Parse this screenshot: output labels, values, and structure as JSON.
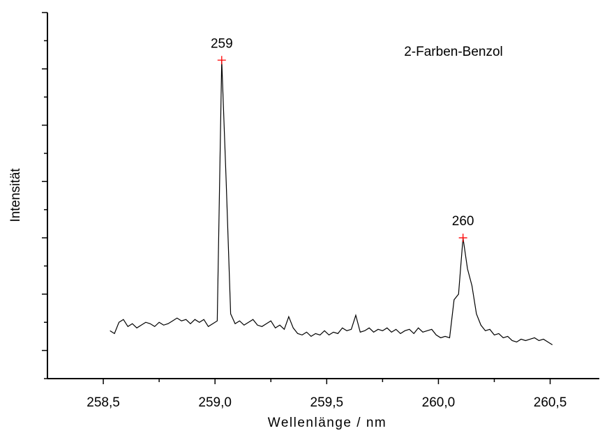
{
  "chart_data": {
    "type": "line",
    "title": "2-Farben-Benzol",
    "xlabel": "Wellenlänge / nm",
    "ylabel": "Intensität",
    "color": "#000000",
    "xlim": [
      258.25,
      260.72
    ],
    "ylim": [
      0,
      13
    ],
    "xticks": [
      {
        "value": 258.5,
        "label": "258,5"
      },
      {
        "value": 259.0,
        "label": "259,0"
      },
      {
        "value": 259.5,
        "label": "259,5"
      },
      {
        "value": 260.0,
        "label": "260,0"
      },
      {
        "value": 260.5,
        "label": "260,5"
      }
    ],
    "xminor_ticks": [
      258.75,
      259.25,
      259.75,
      260.25
    ],
    "yticks": [
      1,
      3,
      5,
      7,
      9,
      11,
      13
    ],
    "yminor_ticks": [
      0,
      2,
      4,
      6,
      8,
      10,
      12
    ],
    "x": [
      258.53,
      258.55,
      258.57,
      258.59,
      258.61,
      258.63,
      258.65,
      258.67,
      258.69,
      258.71,
      258.73,
      258.75,
      258.77,
      258.79,
      258.81,
      258.83,
      258.85,
      258.87,
      258.89,
      258.91,
      258.93,
      258.95,
      258.97,
      258.99,
      259.01,
      259.03,
      259.05,
      259.07,
      259.09,
      259.11,
      259.13,
      259.15,
      259.17,
      259.19,
      259.21,
      259.23,
      259.25,
      259.27,
      259.29,
      259.31,
      259.33,
      259.35,
      259.37,
      259.39,
      259.41,
      259.43,
      259.45,
      259.47,
      259.49,
      259.51,
      259.53,
      259.55,
      259.57,
      259.59,
      259.61,
      259.63,
      259.65,
      259.67,
      259.69,
      259.71,
      259.73,
      259.75,
      259.77,
      259.79,
      259.81,
      259.83,
      259.85,
      259.87,
      259.89,
      259.91,
      259.93,
      259.95,
      259.97,
      259.99,
      260.01,
      260.03,
      260.05,
      260.07,
      260.09,
      260.11,
      260.13,
      260.15,
      260.17,
      260.19,
      260.21,
      260.23,
      260.25,
      260.27,
      260.29,
      260.31,
      260.33,
      260.35,
      260.37,
      260.39,
      260.41,
      260.43,
      260.45,
      260.47,
      260.49,
      260.51
    ],
    "values": [
      1.7,
      1.6,
      2.0,
      2.1,
      1.85,
      1.95,
      1.8,
      1.9,
      2.0,
      1.95,
      1.85,
      2.0,
      1.9,
      1.95,
      2.05,
      2.15,
      2.05,
      2.1,
      1.95,
      2.1,
      2.0,
      2.1,
      1.85,
      1.95,
      2.05,
      11.31,
      7.0,
      2.3,
      1.95,
      2.05,
      1.9,
      2.0,
      2.1,
      1.9,
      1.85,
      1.95,
      2.05,
      1.8,
      1.9,
      1.75,
      2.2,
      1.8,
      1.6,
      1.55,
      1.65,
      1.5,
      1.6,
      1.55,
      1.7,
      1.55,
      1.65,
      1.6,
      1.8,
      1.7,
      1.75,
      2.25,
      1.65,
      1.7,
      1.8,
      1.65,
      1.75,
      1.7,
      1.8,
      1.65,
      1.75,
      1.6,
      1.7,
      1.75,
      1.6,
      1.8,
      1.65,
      1.7,
      1.75,
      1.55,
      1.45,
      1.5,
      1.45,
      2.8,
      3.0,
      5.0,
      3.9,
      3.3,
      2.3,
      1.9,
      1.7,
      1.75,
      1.55,
      1.6,
      1.45,
      1.5,
      1.35,
      1.3,
      1.4,
      1.35,
      1.4,
      1.45,
      1.35,
      1.4,
      1.3,
      1.2
    ],
    "annotations": [
      {
        "x": 259.03,
        "y": 11.31,
        "text": "259",
        "color": "#ff0000"
      },
      {
        "x": 260.11,
        "y": 5.0,
        "text": "260",
        "color": "#ff0000"
      }
    ]
  }
}
